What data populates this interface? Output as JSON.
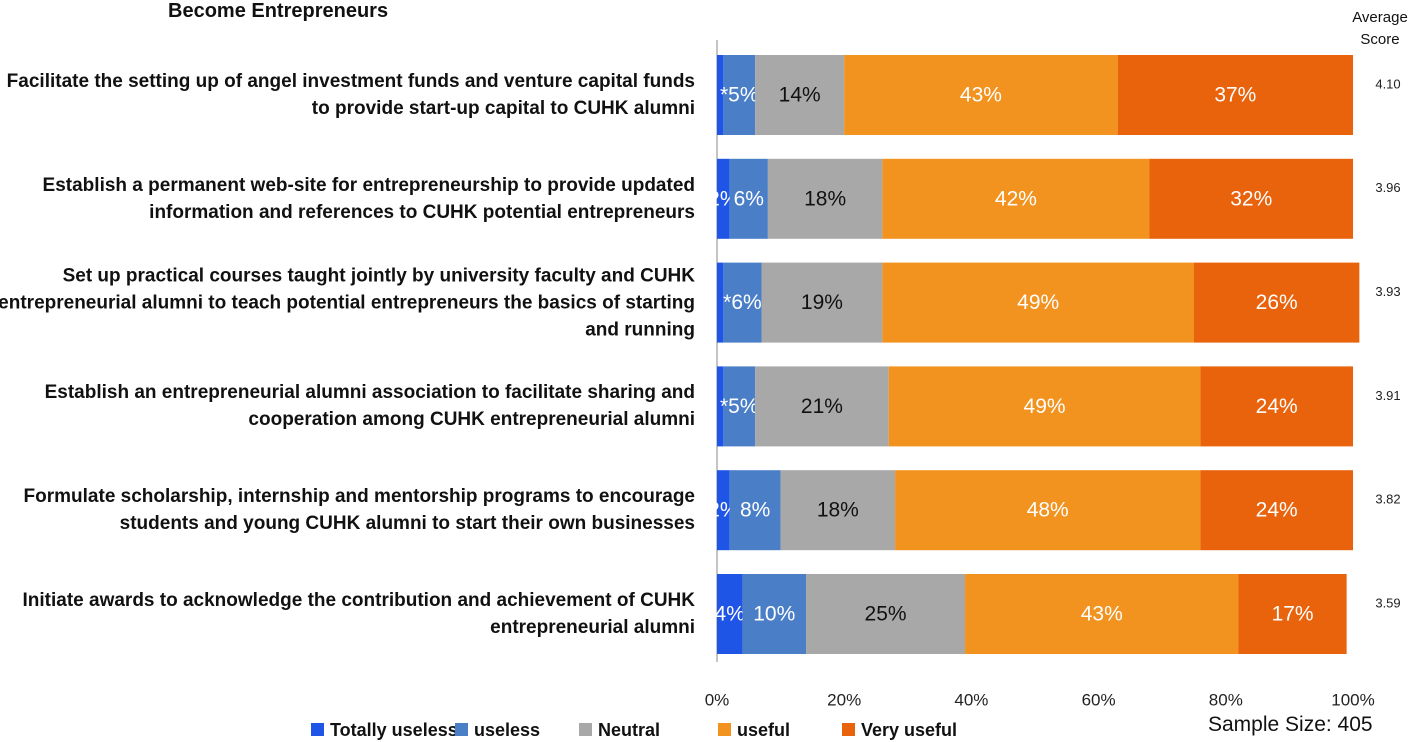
{
  "chart_data": {
    "type": "stacked-bar-horizontal",
    "title": "Become Entrepreneurs",
    "categories": [
      "Facilitate the setting up of angel investment funds and venture capital funds to provide start-up capital to CUHK alumni",
      "Establish a permanent web-site for entrepreneurship to provide updated information and references to CUHK potential entrepreneurs",
      "Set up practical courses taught jointly by university faculty and CUHK entrepreneurial alumni to teach potential entrepreneurs the basics of starting and running",
      "Establish an entrepreneurial alumni association to facilitate sharing and cooperation among CUHK entrepreneurial alumni",
      "Formulate scholarship, internship and mentorship programs to encourage students and young CUHK alumni to start their own businesses",
      "Initiate awards to acknowledge the contribution and achievement of CUHK entrepreneurial alumni"
    ],
    "series": [
      {
        "name": "Totally useless",
        "color": "#1f55e6",
        "label_color": "#ffffff",
        "values": [
          1,
          2,
          1,
          1,
          2,
          4
        ],
        "value_labels": [
          null,
          "2%",
          null,
          null,
          "2%",
          "4%"
        ]
      },
      {
        "name": "useless",
        "color": "#4a7fc8",
        "label_color": "#ffffff",
        "values": [
          5,
          6,
          6,
          5,
          8,
          10
        ],
        "value_labels": [
          "*5%",
          "6%",
          "*6%",
          "*5%",
          "8%",
          "10%"
        ]
      },
      {
        "name": "Neutral",
        "color": "#a8a8a8",
        "label_color": "#111111",
        "values": [
          14,
          18,
          19,
          21,
          18,
          25
        ],
        "value_labels": [
          "14%",
          "18%",
          "19%",
          "21%",
          "18%",
          "25%"
        ]
      },
      {
        "name": "useful",
        "color": "#f2921f",
        "label_color": "#ffffff",
        "values": [
          43,
          42,
          49,
          49,
          48,
          43
        ],
        "value_labels": [
          "43%",
          "42%",
          "49%",
          "49%",
          "48%",
          "43%"
        ]
      },
      {
        "name": "Very useful",
        "color": "#e9620c",
        "label_color": "#ffffff",
        "values": [
          37,
          32,
          26,
          24,
          24,
          17
        ],
        "value_labels": [
          "37%",
          "32%",
          "26%",
          "24%",
          "24%",
          "17%"
        ]
      }
    ],
    "xlim": [
      0,
      100
    ],
    "xticks": [
      {
        "value": 0,
        "label": "0%"
      },
      {
        "value": 20,
        "label": "20%"
      },
      {
        "value": 40,
        "label": "40%"
      },
      {
        "value": 60,
        "label": "60%"
      },
      {
        "value": 80,
        "label": "80%"
      },
      {
        "value": 100,
        "label": "100%"
      }
    ],
    "legend": "bottom",
    "average_score": {
      "title": "Average Score",
      "values": [
        4.1,
        3.96,
        3.93,
        3.91,
        3.82,
        3.59
      ],
      "value_labels": [
        "4.10",
        "3.96",
        "3.93",
        "3.91",
        "3.82",
        "3.59"
      ]
    },
    "note": "Sample Size: 405"
  }
}
